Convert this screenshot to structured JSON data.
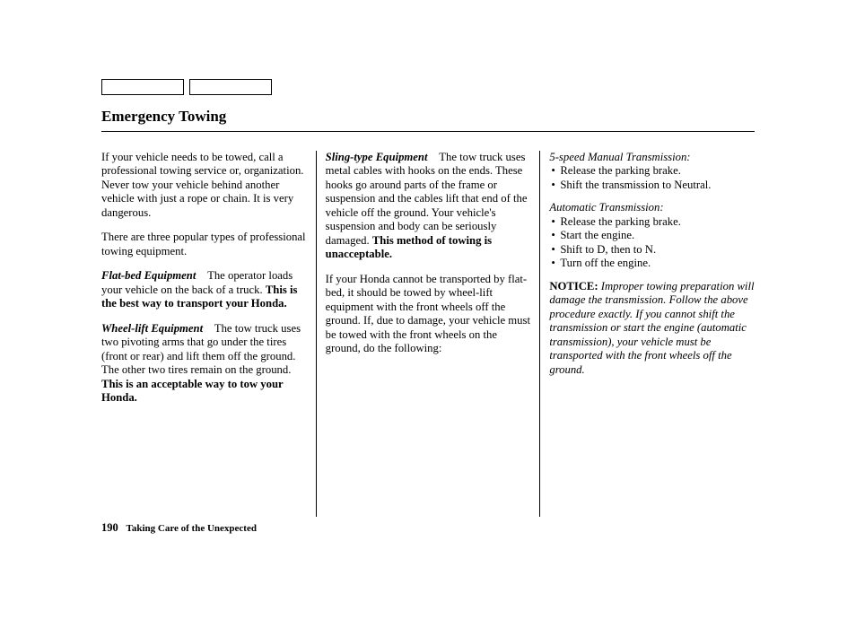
{
  "header": {
    "title": "Emergency Towing"
  },
  "col1": {
    "p1": "If your vehicle needs to be towed, call a professional towing service or, organization. Never tow your vehicle behind another vehicle with just a rope or chain. It is very dangerous.",
    "p2": "There are three popular types of professional towing equipment.",
    "flatbed_label": "Flat-bed Equipment",
    "flatbed_body": "The operator loads your vehicle on the back of a truck. ",
    "flatbed_bold": "This is the best way to transport your Honda.",
    "wheel_label": "Wheel-lift Equipment",
    "wheel_body": "The tow truck uses two pivoting arms that go under the tires (front or rear) and lift them off the ground. The other two tires remain on the ground. ",
    "wheel_bold": "This is an acceptable way to tow your Honda."
  },
  "col2": {
    "sling_label": "Sling-type Equipment",
    "sling_body": "The tow truck uses metal cables with hooks on the ends. These hooks go around parts of the frame or suspension and the cables lift that end of the vehicle off the ground. Your vehicle's suspension and body can be seriously damaged. ",
    "sling_bold": "This method of towing is unacceptable.",
    "p2": "If your Honda cannot be transported by flat-bed, it should be towed by wheel-lift equipment with the front wheels off the ground. If, due to damage, your vehicle must be towed with the front wheels on the ground, do the following:"
  },
  "col3": {
    "manual_heading": "5-speed Manual Transmission:",
    "manual_items": [
      "Release the parking brake.",
      "Shift the transmission to Neutral."
    ],
    "auto_heading": "Automatic Transmission:",
    "auto_items": [
      "Release the parking brake.",
      "Start the engine.",
      "Shift to D, then to N.",
      "Turn off the engine."
    ],
    "notice_label": "NOTICE:",
    "notice_body": "Improper towing preparation will damage the transmission. Follow the above procedure exactly. If you cannot shift the transmission or start the engine (automatic transmission), your vehicle must be transported with the front wheels off the ground."
  },
  "footer": {
    "page_number": "190",
    "section": "Taking Care of the Unexpected"
  }
}
